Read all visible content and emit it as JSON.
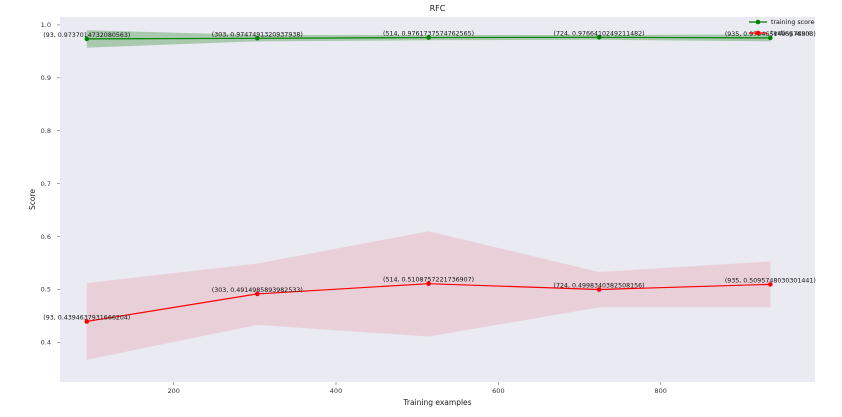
{
  "chart_data": {
    "type": "line",
    "title": "RFC",
    "xlabel": "Training examples",
    "ylabel": "Score",
    "xlim": [
      60,
      990
    ],
    "ylim": [
      0.325,
      1.015
    ],
    "x_ticks": [
      200,
      400,
      600,
      800
    ],
    "y_ticks": [
      0.4,
      0.5,
      0.6,
      0.7,
      0.8,
      0.9,
      1.0
    ],
    "x_tick_labels": [
      "200",
      "400",
      "600",
      "800"
    ],
    "y_tick_labels": [
      "0.4",
      "0.5",
      "0.6",
      "0.7",
      "0.8",
      "0.9",
      "1.0"
    ],
    "grid": false,
    "background_color": "#eaeaf2",
    "legend_position": "top-right",
    "x": [
      93,
      303,
      514,
      724,
      935
    ],
    "series": [
      {
        "name": "training score",
        "color": "#008000",
        "band_color": "#2e8b2e",
        "values": [
          0.973701,
          0.974749,
          0.976173,
          0.976641,
          0.975465
        ],
        "band_lower": [
          0.957,
          0.969,
          0.971,
          0.972,
          0.969
        ],
        "band_upper": [
          0.99,
          0.981,
          0.981,
          0.981,
          0.982
        ],
        "point_labels": [
          "(93, 0.9737014732080563)",
          "(303, 0.9747491320937938)",
          "(514, 0.9761737574762565)",
          "(724, 0.9766410249211482)",
          "(935, 0.9754651495578503)"
        ]
      },
      {
        "name": "testing score",
        "color": "#ff0000",
        "band_color": "#e8a0a8",
        "values": [
          0.439464,
          0.491499,
          0.510876,
          0.499834,
          0.509575
        ],
        "band_lower": [
          0.367,
          0.433,
          0.411,
          0.466,
          0.466
        ],
        "band_upper": [
          0.512,
          0.549,
          0.61,
          0.533,
          0.553
        ],
        "point_labels": [
          "(93, 0.4394637931666204)",
          "(303, 0.4914985893982533)",
          "(514, 0.5108757221736907)",
          "(724, 0.4998340382508156)",
          "(935, 0.5095748030301441)"
        ]
      }
    ]
  }
}
